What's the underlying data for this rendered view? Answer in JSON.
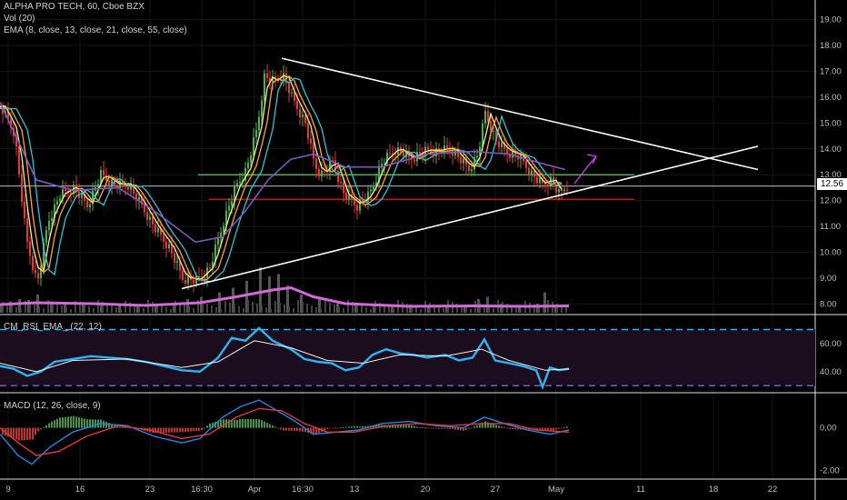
{
  "legend": {
    "title": "ALPHA PRO TECH, 60, Cboe BZX",
    "vol": "Vol (20)",
    "ema": "EMA (8, close, 13, close, 21, close, 55, close)",
    "rsi": "CM_RSI_EMA_ (22, 12)",
    "macd": "MACD (12, 26, close, 9)"
  },
  "price_tag": "12.56",
  "colors": {
    "background": "#000000",
    "up": "#4caf50",
    "down": "#e53935",
    "ema8": "#f5f08a",
    "ema13": "#ffa726",
    "ema21": "#26c6da",
    "ema55": "#7e57c2",
    "rsi": "#29b6f6",
    "macd": "#1e88e5",
    "signal": "#e53935",
    "resistance": "#4caf50",
    "support": "#b71c1c",
    "trendline": "#ffffff",
    "arrow": "#e040fb"
  },
  "chart_data": [
    {
      "type": "line",
      "title": "ALPHA PRO TECH, 60, Cboe BZX",
      "yticks": [
        "19.00",
        "18.00",
        "17.00",
        "16.00",
        "15.00",
        "14.00",
        "13.00",
        "12.00",
        "11.00",
        "10.00",
        "9.00",
        "8.00"
      ],
      "ylim": [
        7.6,
        19.4
      ],
      "xticks": [
        "9",
        "16",
        "23",
        "16:30",
        "Apr",
        "16:30",
        "13",
        "20",
        "27",
        "May",
        "11",
        "18",
        "22"
      ],
      "last_price": 12.56,
      "price_path": [
        [
          0,
          15.6
        ],
        [
          15,
          14.6
        ],
        [
          28,
          10.5
        ],
        [
          40,
          8.8
        ],
        [
          52,
          11.2
        ],
        [
          65,
          12.2
        ],
        [
          80,
          12.5
        ],
        [
          95,
          11.8
        ],
        [
          110,
          13.0
        ],
        [
          125,
          12.6
        ],
        [
          140,
          12.6
        ],
        [
          155,
          11.8
        ],
        [
          170,
          10.9
        ],
        [
          185,
          10.2
        ],
        [
          200,
          9.0
        ],
        [
          215,
          8.9
        ],
        [
          230,
          9.4
        ],
        [
          245,
          11.2
        ],
        [
          258,
          12.5
        ],
        [
          270,
          13.2
        ],
        [
          282,
          14.8
        ],
        [
          290,
          16.8
        ],
        [
          300,
          16.6
        ],
        [
          310,
          16.9
        ],
        [
          320,
          16.0
        ],
        [
          335,
          15.0
        ],
        [
          345,
          13.4
        ],
        [
          352,
          13.0
        ],
        [
          365,
          13.5
        ],
        [
          378,
          12.2
        ],
        [
          392,
          11.8
        ],
        [
          405,
          12.2
        ],
        [
          420,
          13.5
        ],
        [
          435,
          14.0
        ],
        [
          450,
          13.6
        ],
        [
          465,
          13.9
        ],
        [
          480,
          13.9
        ],
        [
          495,
          14.0
        ],
        [
          505,
          13.6
        ],
        [
          515,
          13.2
        ],
        [
          525,
          13.8
        ],
        [
          533,
          15.4
        ],
        [
          545,
          14.3
        ],
        [
          555,
          13.9
        ],
        [
          570,
          13.7
        ],
        [
          585,
          13.0
        ],
        [
          595,
          12.6
        ],
        [
          605,
          12.8
        ],
        [
          615,
          12.2
        ],
        [
          622,
          12.6
        ]
      ],
      "ema55_path": [
        [
          0,
          15.8
        ],
        [
          40,
          12.8
        ],
        [
          80,
          12.4
        ],
        [
          130,
          12.5
        ],
        [
          170,
          11.6
        ],
        [
          215,
          10.4
        ],
        [
          245,
          10.6
        ],
        [
          270,
          11.6
        ],
        [
          295,
          12.8
        ],
        [
          320,
          13.6
        ],
        [
          345,
          13.8
        ],
        [
          380,
          13.3
        ],
        [
          420,
          13.3
        ],
        [
          470,
          13.8
        ],
        [
          520,
          13.9
        ],
        [
          560,
          13.8
        ],
        [
          600,
          13.4
        ],
        [
          622,
          13.2
        ]
      ],
      "trendlines": [
        {
          "name": "descending-resistance",
          "from": [
            310,
            17.5
          ],
          "to": [
            834,
            13.2
          ]
        },
        {
          "name": "ascending-support",
          "from": [
            200,
            8.6
          ],
          "to": [
            834,
            14.1
          ]
        }
      ],
      "levels": [
        {
          "name": "resistance",
          "value": 13.0,
          "x": [
            218,
            698
          ]
        },
        {
          "name": "support",
          "value": 12.05,
          "x": [
            230,
            698
          ]
        }
      ]
    },
    {
      "type": "bar",
      "title": "Vol (20)",
      "volume_bars": [
        [
          0,
          0.2
        ],
        [
          10,
          0.25
        ],
        [
          20,
          0.3
        ],
        [
          30,
          0.28
        ],
        [
          40,
          0.4
        ],
        [
          55,
          0.25
        ],
        [
          70,
          0.2
        ],
        [
          90,
          0.22
        ],
        [
          110,
          0.18
        ],
        [
          130,
          0.2
        ],
        [
          150,
          0.15
        ],
        [
          170,
          0.18
        ],
        [
          190,
          0.22
        ],
        [
          205,
          0.3
        ],
        [
          220,
          0.35
        ],
        [
          240,
          0.45
        ],
        [
          255,
          0.55
        ],
        [
          270,
          0.7
        ],
        [
          285,
          1.0
        ],
        [
          295,
          0.8
        ],
        [
          305,
          0.85
        ],
        [
          315,
          0.6
        ],
        [
          330,
          0.4
        ],
        [
          350,
          0.3
        ],
        [
          370,
          0.2
        ],
        [
          390,
          0.18
        ],
        [
          410,
          0.15
        ],
        [
          430,
          0.16
        ],
        [
          450,
          0.18
        ],
        [
          470,
          0.15
        ],
        [
          490,
          0.14
        ],
        [
          510,
          0.16
        ],
        [
          525,
          0.3
        ],
        [
          535,
          0.35
        ],
        [
          550,
          0.2
        ],
        [
          570,
          0.15
        ],
        [
          590,
          0.2
        ],
        [
          598,
          0.45
        ],
        [
          610,
          0.15
        ]
      ],
      "volume_ma": [
        [
          0,
          0.18
        ],
        [
          40,
          0.22
        ],
        [
          100,
          0.2
        ],
        [
          160,
          0.16
        ],
        [
          220,
          0.22
        ],
        [
          260,
          0.35
        ],
        [
          300,
          0.5
        ],
        [
          320,
          0.55
        ],
        [
          345,
          0.35
        ],
        [
          380,
          0.2
        ],
        [
          450,
          0.14
        ],
        [
          520,
          0.15
        ],
        [
          580,
          0.14
        ],
        [
          626,
          0.15
        ]
      ]
    },
    {
      "type": "line",
      "title": "CM_RSI_EMA_ (22, 12)",
      "yticks": [
        "60.00",
        "40.00"
      ],
      "ylim": [
        25,
        80
      ],
      "bands": [
        70,
        30
      ],
      "rsi_path": [
        [
          0,
          44
        ],
        [
          15,
          42
        ],
        [
          30,
          37
        ],
        [
          45,
          40
        ],
        [
          60,
          47
        ],
        [
          80,
          49
        ],
        [
          100,
          51
        ],
        [
          120,
          50
        ],
        [
          140,
          49
        ],
        [
          160,
          47
        ],
        [
          180,
          44
        ],
        [
          200,
          41
        ],
        [
          220,
          40
        ],
        [
          240,
          50
        ],
        [
          255,
          64
        ],
        [
          270,
          62
        ],
        [
          285,
          71
        ],
        [
          300,
          62
        ],
        [
          320,
          56
        ],
        [
          335,
          49
        ],
        [
          350,
          47
        ],
        [
          365,
          46
        ],
        [
          380,
          41
        ],
        [
          395,
          43
        ],
        [
          410,
          52
        ],
        [
          425,
          56
        ],
        [
          440,
          53
        ],
        [
          455,
          52
        ],
        [
          470,
          50
        ],
        [
          490,
          52
        ],
        [
          505,
          48
        ],
        [
          520,
          50
        ],
        [
          533,
          63
        ],
        [
          545,
          48
        ],
        [
          560,
          46
        ],
        [
          575,
          44
        ],
        [
          590,
          41
        ],
        [
          597,
          29
        ],
        [
          605,
          43
        ],
        [
          615,
          41
        ],
        [
          626,
          42
        ]
      ],
      "rsi_ema_path": [
        [
          0,
          46
        ],
        [
          40,
          40
        ],
        [
          80,
          48
        ],
        [
          140,
          49
        ],
        [
          200,
          43
        ],
        [
          240,
          47
        ],
        [
          280,
          62
        ],
        [
          320,
          57
        ],
        [
          360,
          48
        ],
        [
          400,
          46
        ],
        [
          440,
          52
        ],
        [
          490,
          51
        ],
        [
          530,
          56
        ],
        [
          560,
          48
        ],
        [
          600,
          41
        ],
        [
          626,
          42
        ]
      ]
    },
    {
      "type": "line",
      "title": "MACD (12, 26, close, 9)",
      "yticks": [
        "0.00",
        "-2.00"
      ],
      "ylim": [
        -2.4,
        1.6
      ],
      "macd_path": [
        [
          0,
          -0.3
        ],
        [
          20,
          -1.3
        ],
        [
          35,
          -1.7
        ],
        [
          55,
          -0.9
        ],
        [
          80,
          -0.2
        ],
        [
          110,
          0.2
        ],
        [
          140,
          0.1
        ],
        [
          170,
          -0.4
        ],
        [
          200,
          -0.7
        ],
        [
          220,
          -0.5
        ],
        [
          245,
          0.5
        ],
        [
          265,
          1.0
        ],
        [
          285,
          1.3
        ],
        [
          305,
          0.8
        ],
        [
          325,
          0.3
        ],
        [
          345,
          -0.3
        ],
        [
          370,
          -0.2
        ],
        [
          395,
          -0.1
        ],
        [
          420,
          0.2
        ],
        [
          450,
          0.3
        ],
        [
          480,
          0.1
        ],
        [
          510,
          0.0
        ],
        [
          533,
          0.5
        ],
        [
          555,
          0.2
        ],
        [
          580,
          -0.1
        ],
        [
          605,
          -0.3
        ],
        [
          626,
          -0.1
        ]
      ],
      "signal_path": [
        [
          0,
          0.0
        ],
        [
          20,
          -0.7
        ],
        [
          40,
          -1.3
        ],
        [
          65,
          -1.1
        ],
        [
          95,
          -0.4
        ],
        [
          130,
          0.1
        ],
        [
          165,
          -0.1
        ],
        [
          200,
          -0.5
        ],
        [
          230,
          -0.3
        ],
        [
          260,
          0.5
        ],
        [
          285,
          0.9
        ],
        [
          310,
          0.8
        ],
        [
          335,
          0.2
        ],
        [
          360,
          -0.2
        ],
        [
          390,
          -0.2
        ],
        [
          425,
          0.1
        ],
        [
          460,
          0.2
        ],
        [
          495,
          0.1
        ],
        [
          530,
          0.2
        ],
        [
          560,
          0.2
        ],
        [
          590,
          -0.1
        ],
        [
          626,
          -0.2
        ]
      ]
    }
  ]
}
